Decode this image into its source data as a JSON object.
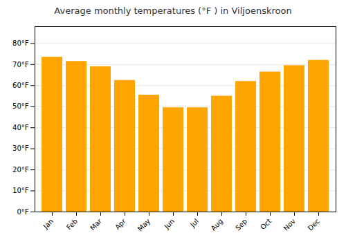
{
  "chart_data": {
    "type": "bar",
    "title": "Average monthly temperatures (°F ) in Viljoenskroon",
    "categories": [
      "Jan",
      "Feb",
      "Mar",
      "Apr",
      "May",
      "Jun",
      "Jul",
      "Aug",
      "Sep",
      "Oct",
      "Nov",
      "Dec"
    ],
    "values": [
      73.5,
      71.5,
      69.0,
      62.5,
      55.5,
      49.5,
      49.5,
      55.0,
      62.0,
      66.5,
      69.5,
      72.0
    ],
    "color": "#FFA500",
    "ylim": [
      0,
      88
    ],
    "yticks": [
      {
        "value": 0,
        "label": "0°F"
      },
      {
        "value": 10,
        "label": "10°F"
      },
      {
        "value": 20,
        "label": "20°F"
      },
      {
        "value": 30,
        "label": "30°F"
      },
      {
        "value": 40,
        "label": "40°F"
      },
      {
        "value": 50,
        "label": "50°F"
      },
      {
        "value": 60,
        "label": "60°F"
      },
      {
        "value": 70,
        "label": "70°F"
      },
      {
        "value": 80,
        "label": "80°F"
      }
    ],
    "grid": true
  }
}
